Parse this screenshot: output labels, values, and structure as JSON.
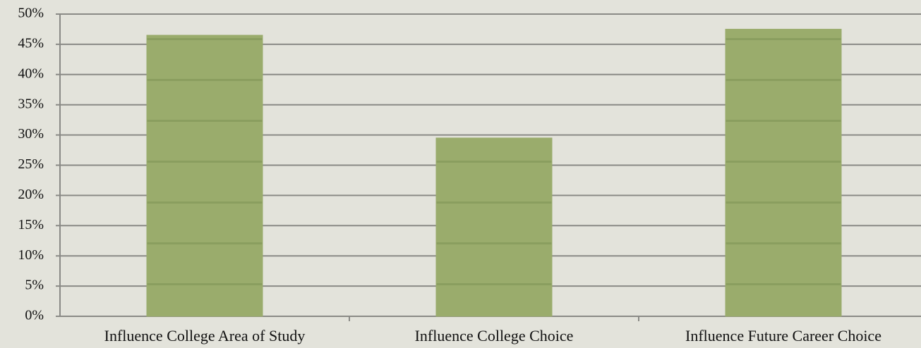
{
  "chart_data": {
    "type": "bar",
    "categories": [
      "Influence College Area of Study",
      "Influence College Choice",
      "Influence Future Career Choice"
    ],
    "values": [
      46.5,
      29.5,
      47.5
    ],
    "color": "#9aac6c",
    "ylim": [
      0,
      50
    ],
    "yticks": [
      {
        "value": 0,
        "label": "0%"
      },
      {
        "value": 5,
        "label": "5%"
      },
      {
        "value": 10,
        "label": "10%"
      },
      {
        "value": 15,
        "label": "15%"
      },
      {
        "value": 20,
        "label": "20%"
      },
      {
        "value": 25,
        "label": "25%"
      },
      {
        "value": 30,
        "label": "30%"
      },
      {
        "value": 35,
        "label": "35%"
      },
      {
        "value": 40,
        "label": "40%"
      },
      {
        "value": 45,
        "label": "45%"
      },
      {
        "value": 50,
        "label": "50%"
      }
    ],
    "grid": true
  }
}
